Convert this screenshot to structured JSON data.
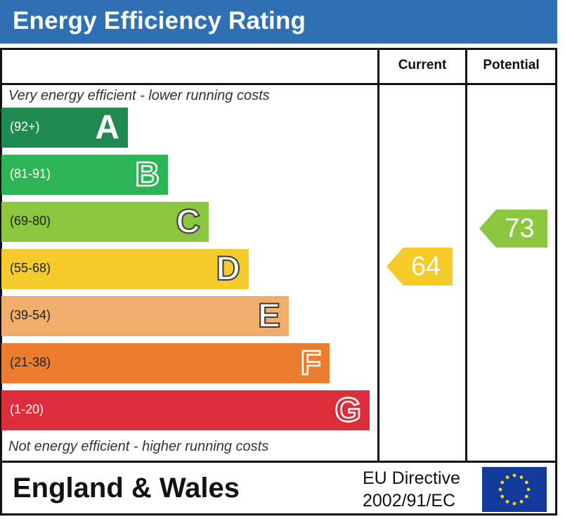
{
  "header": {
    "title": "Energy Efficiency Rating"
  },
  "columns": {
    "current": "Current",
    "potential": "Potential"
  },
  "captions": {
    "top": "Very energy efficient - lower running costs",
    "bottom": "Not energy efficient - higher running costs"
  },
  "chart_data": {
    "type": "bar",
    "title": "Energy Efficiency Rating",
    "categories": [
      "A",
      "B",
      "C",
      "D",
      "E",
      "F",
      "G"
    ],
    "ranges": [
      "(92+)",
      "(81-91)",
      "(69-80)",
      "(55-68)",
      "(39-54)",
      "(21-38)",
      "(1-20)"
    ],
    "colors": [
      "#1f8a4f",
      "#2db457",
      "#8bc63e",
      "#f5cb2a",
      "#f0ad6b",
      "#ea7d2f",
      "#de2d3a"
    ],
    "current": {
      "label": "Current",
      "value": 64,
      "band": "D",
      "color": "#f5cb2a"
    },
    "potential": {
      "label": "Potential",
      "value": 73,
      "band": "C",
      "color": "#8bc63e"
    }
  },
  "footer": {
    "country": "England & Wales",
    "directive_line1": "EU Directive",
    "directive_line2": "2002/91/EC"
  },
  "icons": {
    "flag": "eu-flag-icon"
  }
}
